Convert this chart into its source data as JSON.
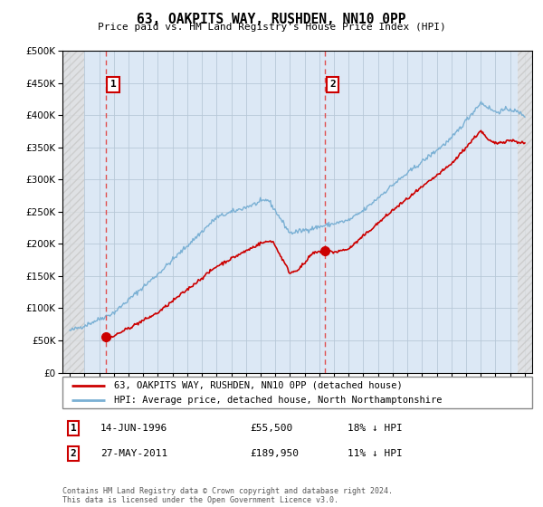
{
  "title": "63, OAKPITS WAY, RUSHDEN, NN10 0PP",
  "subtitle": "Price paid vs. HM Land Registry's House Price Index (HPI)",
  "legend_label_red": "63, OAKPITS WAY, RUSHDEN, NN10 0PP (detached house)",
  "legend_label_blue": "HPI: Average price, detached house, North Northamptonshire",
  "annotation1_date": "14-JUN-1996",
  "annotation1_price": "£55,500",
  "annotation1_hpi": "18% ↓ HPI",
  "annotation2_date": "27-MAY-2011",
  "annotation2_price": "£189,950",
  "annotation2_hpi": "11% ↓ HPI",
  "footer": "Contains HM Land Registry data © Crown copyright and database right 2024.\nThis data is licensed under the Open Government Licence v3.0.",
  "ylim": [
    0,
    500000
  ],
  "yticks": [
    0,
    50000,
    100000,
    150000,
    200000,
    250000,
    300000,
    350000,
    400000,
    450000,
    500000
  ],
  "color_red": "#cc0000",
  "color_blue": "#7ab0d4",
  "color_dashed": "#e05050",
  "bg_color": "#dce8f5",
  "purchase1_year": 1996.45,
  "purchase2_year": 2011.41,
  "purchase1_price": 55500,
  "purchase2_price": 189950,
  "xmin": 1994,
  "xmax": 2025
}
